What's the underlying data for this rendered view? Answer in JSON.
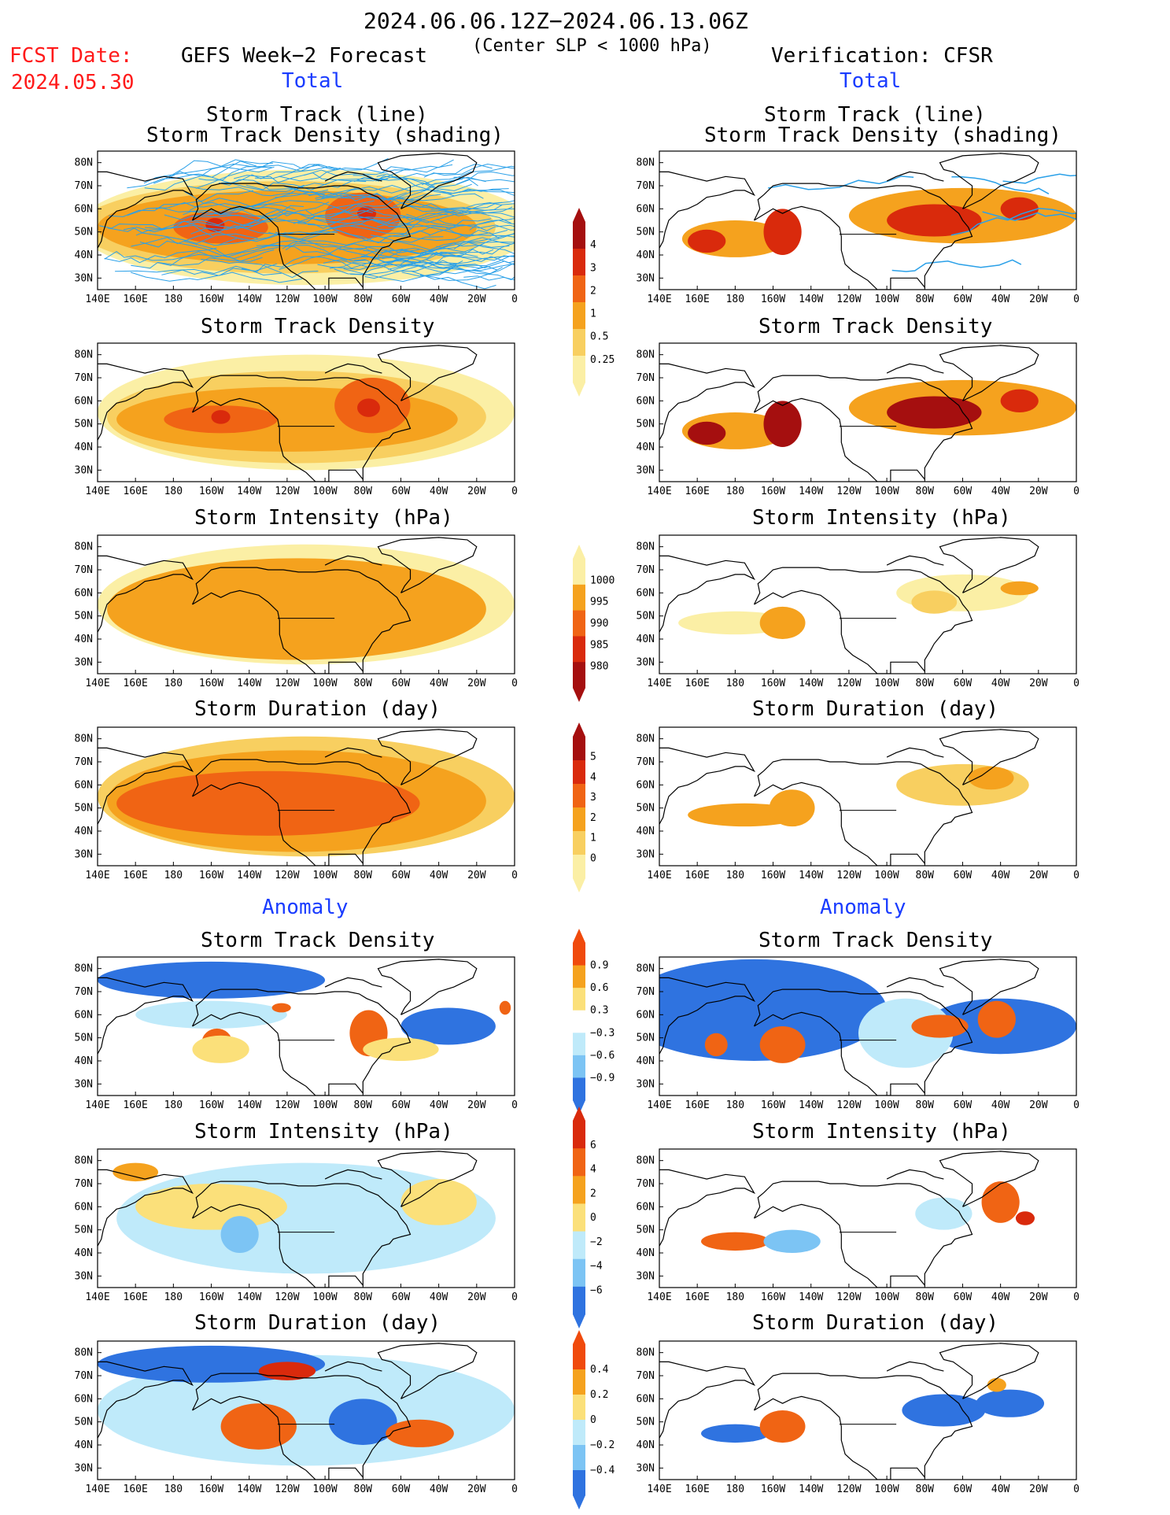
{
  "header": {
    "date_range": "2024.06.06.12Z−2024.06.13.06Z",
    "criterion": "(Center SLP < 1000 hPa)",
    "fcst_label": "FCST Date:",
    "fcst_date": "2024.05.30",
    "left_title": "GEFS Week−2 Forecast",
    "right_title": "Verification: CFSR"
  },
  "sections": {
    "total": "Total",
    "anomaly": "Anomaly"
  },
  "panel_titles": {
    "track_line": "Storm Track (line)",
    "track_density_shading": "Storm Track Density (shading)",
    "track_density": "Storm Track Density",
    "intensity": "Storm Intensity (hPa)",
    "duration": "Storm Duration (day)"
  },
  "axes": {
    "lat_labels": [
      "80N",
      "70N",
      "60N",
      "50N",
      "40N",
      "30N"
    ],
    "lon_labels": [
      "140E",
      "160E",
      "180",
      "160W",
      "140W",
      "120W",
      "100W",
      "80W",
      "60W",
      "40W",
      "20W",
      "0"
    ]
  },
  "colorbars": {
    "density": {
      "labels": [
        "4",
        "3",
        "2",
        "1",
        "0.5",
        "0.25"
      ],
      "colors": [
        "#a50f0f",
        "#d92a0c",
        "#f06414",
        "#f5a21e",
        "#f8cf60",
        "#fbefa5"
      ]
    },
    "intensity": {
      "labels": [
        "1000",
        "995",
        "990",
        "985",
        "980"
      ],
      "colors": [
        "#fbefa5",
        "#f5a21e",
        "#f06414",
        "#d92a0c",
        "#a50f0f"
      ]
    },
    "duration": {
      "labels": [
        "5",
        "4",
        "3",
        "2",
        "1",
        "0"
      ],
      "colors": [
        "#a50f0f",
        "#d92a0c",
        "#f06414",
        "#f5a21e",
        "#f8cf60",
        "#fbefa5"
      ]
    },
    "anom_density": {
      "labels": [
        "0.9",
        "0.6",
        "0.3",
        "−0.3",
        "−0.6",
        "−0.9"
      ],
      "colors": [
        "#f04a0c",
        "#f5a21e",
        "#fbe07a",
        "#ffffff",
        "#bfeafa",
        "#7cc4f4",
        "#2f73e0"
      ]
    },
    "anom_intensity": {
      "labels": [
        "6",
        "4",
        "2",
        "0",
        "−2",
        "−4",
        "−6"
      ],
      "colors": [
        "#d92a0c",
        "#f06414",
        "#f5a21e",
        "#fbe07a",
        "#bfeafa",
        "#7cc4f4",
        "#2f73e0"
      ]
    },
    "anom_duration": {
      "labels": [
        "0.4",
        "0.2",
        "0",
        "−0.2",
        "−0.4"
      ],
      "colors": [
        "#f04a0c",
        "#f5a21e",
        "#fbe07a",
        "#bfeafa",
        "#7cc4f4",
        "#2f73e0"
      ]
    }
  },
  "colors": {
    "track_line": "#2aa0e8",
    "land_outline": "#000000"
  }
}
